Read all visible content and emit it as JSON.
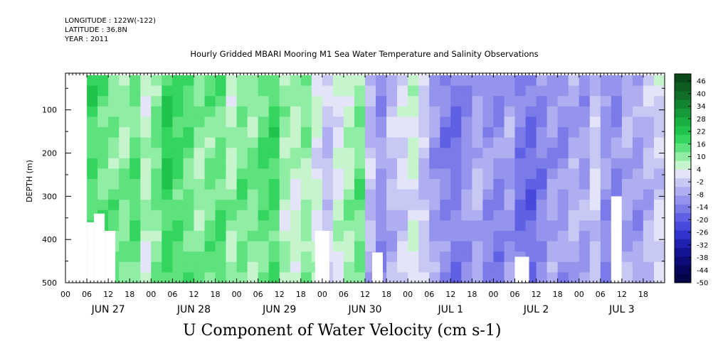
{
  "header": {
    "longitude": "LONGITUDE : 122W(-122)",
    "latitude": "LATITUDE : 36.8N",
    "year": "YEAR : 2011"
  },
  "chart_data": {
    "type": "heatmap",
    "title": "Hourly Gridded MBARI Mooring M1 Sea Water Temperature and Salinity Observations",
    "colorbar_title": "U Component of Water Velocity (cm s-1)",
    "ylabel": "DEPTH (m)",
    "xlabel": "",
    "ylim": [
      500,
      15
    ],
    "y_inverted": true,
    "y_ticks": [
      100,
      200,
      300,
      400,
      500
    ],
    "x_range_hours": [
      0,
      168
    ],
    "x_start": "2011-06-27 00:00",
    "x_hour_tick_labels": [
      "00",
      "06",
      "12",
      "18",
      "00",
      "06",
      "12",
      "18",
      "00",
      "06",
      "12",
      "18",
      "00",
      "06",
      "12",
      "18",
      "00",
      "06",
      "12",
      "18",
      "00",
      "06",
      "12",
      "18",
      "00",
      "06",
      "12",
      "18"
    ],
    "x_day_labels": [
      "JUN 27",
      "JUN 28",
      "JUN 29",
      "JUN 30",
      "JUL  1",
      "JUL  2",
      "JUL  3"
    ],
    "colorbar_levels": [
      46,
      40,
      34,
      28,
      22,
      16,
      10,
      4,
      -2,
      -8,
      -14,
      -20,
      -26,
      -32,
      -38,
      -44,
      -50
    ],
    "colorbar_colors": [
      "#0a4a1a",
      "#0d5c21",
      "#107029",
      "#138531",
      "#169a39",
      "#19af41",
      "#1fc24a",
      "#34d55e",
      "#5ee27e",
      "#8feea3",
      "#c6f5cd",
      "#e4e4f8",
      "#c8c8f4",
      "#aeaef0",
      "#9494ec",
      "#7a7ae8",
      "#6060e4",
      "#4848dc",
      "#3232cc",
      "#2020b0",
      "#141494",
      "#0c0c78",
      "#06065c",
      "#030348"
    ],
    "data_columns": [
      {
        "hour": 6,
        "value": 14
      },
      {
        "hour": 9,
        "value": 12
      },
      {
        "hour": 12,
        "value": 10
      },
      {
        "hour": 15,
        "value": 8
      },
      {
        "hour": 18,
        "value": 12
      },
      {
        "hour": 21,
        "value": 4
      },
      {
        "hour": 24,
        "value": 10
      },
      {
        "hour": 27,
        "value": 16
      },
      {
        "hour": 30,
        "value": 14
      },
      {
        "hour": 33,
        "value": 12
      },
      {
        "hour": 36,
        "value": 8
      },
      {
        "hour": 39,
        "value": 10
      },
      {
        "hour": 42,
        "value": 12
      },
      {
        "hour": 45,
        "value": 6
      },
      {
        "hour": 48,
        "value": 10
      },
      {
        "hour": 51,
        "value": 8
      },
      {
        "hour": 54,
        "value": 12
      },
      {
        "hour": 57,
        "value": 14
      },
      {
        "hour": 60,
        "value": 6
      },
      {
        "hour": 63,
        "value": 4
      },
      {
        "hour": 66,
        "value": 8
      },
      {
        "hour": 69,
        "value": 2
      },
      {
        "hour": 72,
        "value": -4
      },
      {
        "hour": 75,
        "value": 2
      },
      {
        "hour": 78,
        "value": 6
      },
      {
        "hour": 81,
        "value": 10
      },
      {
        "hour": 84,
        "value": -6
      },
      {
        "hour": 87,
        "value": -12
      },
      {
        "hour": 90,
        "value": -6
      },
      {
        "hour": 93,
        "value": -2
      },
      {
        "hour": 96,
        "value": 2
      },
      {
        "hour": 99,
        "value": -4
      },
      {
        "hour": 102,
        "value": -10
      },
      {
        "hour": 105,
        "value": -14
      },
      {
        "hour": 108,
        "value": -16
      },
      {
        "hour": 111,
        "value": -12
      },
      {
        "hour": 114,
        "value": -8
      },
      {
        "hour": 117,
        "value": -12
      },
      {
        "hour": 120,
        "value": -14
      },
      {
        "hour": 123,
        "value": -10
      },
      {
        "hour": 126,
        "value": -16
      },
      {
        "hour": 129,
        "value": -18
      },
      {
        "hour": 132,
        "value": -14
      },
      {
        "hour": 135,
        "value": -10
      },
      {
        "hour": 138,
        "value": -12
      },
      {
        "hour": 141,
        "value": -8
      },
      {
        "hour": 144,
        "value": -10
      },
      {
        "hour": 147,
        "value": -4
      },
      {
        "hour": 150,
        "value": -12
      },
      {
        "hour": 153,
        "value": -14
      },
      {
        "hour": 156,
        "value": -8
      },
      {
        "hour": 159,
        "value": -10
      },
      {
        "hour": 162,
        "value": -6
      },
      {
        "hour": 165,
        "value": -2
      }
    ]
  }
}
